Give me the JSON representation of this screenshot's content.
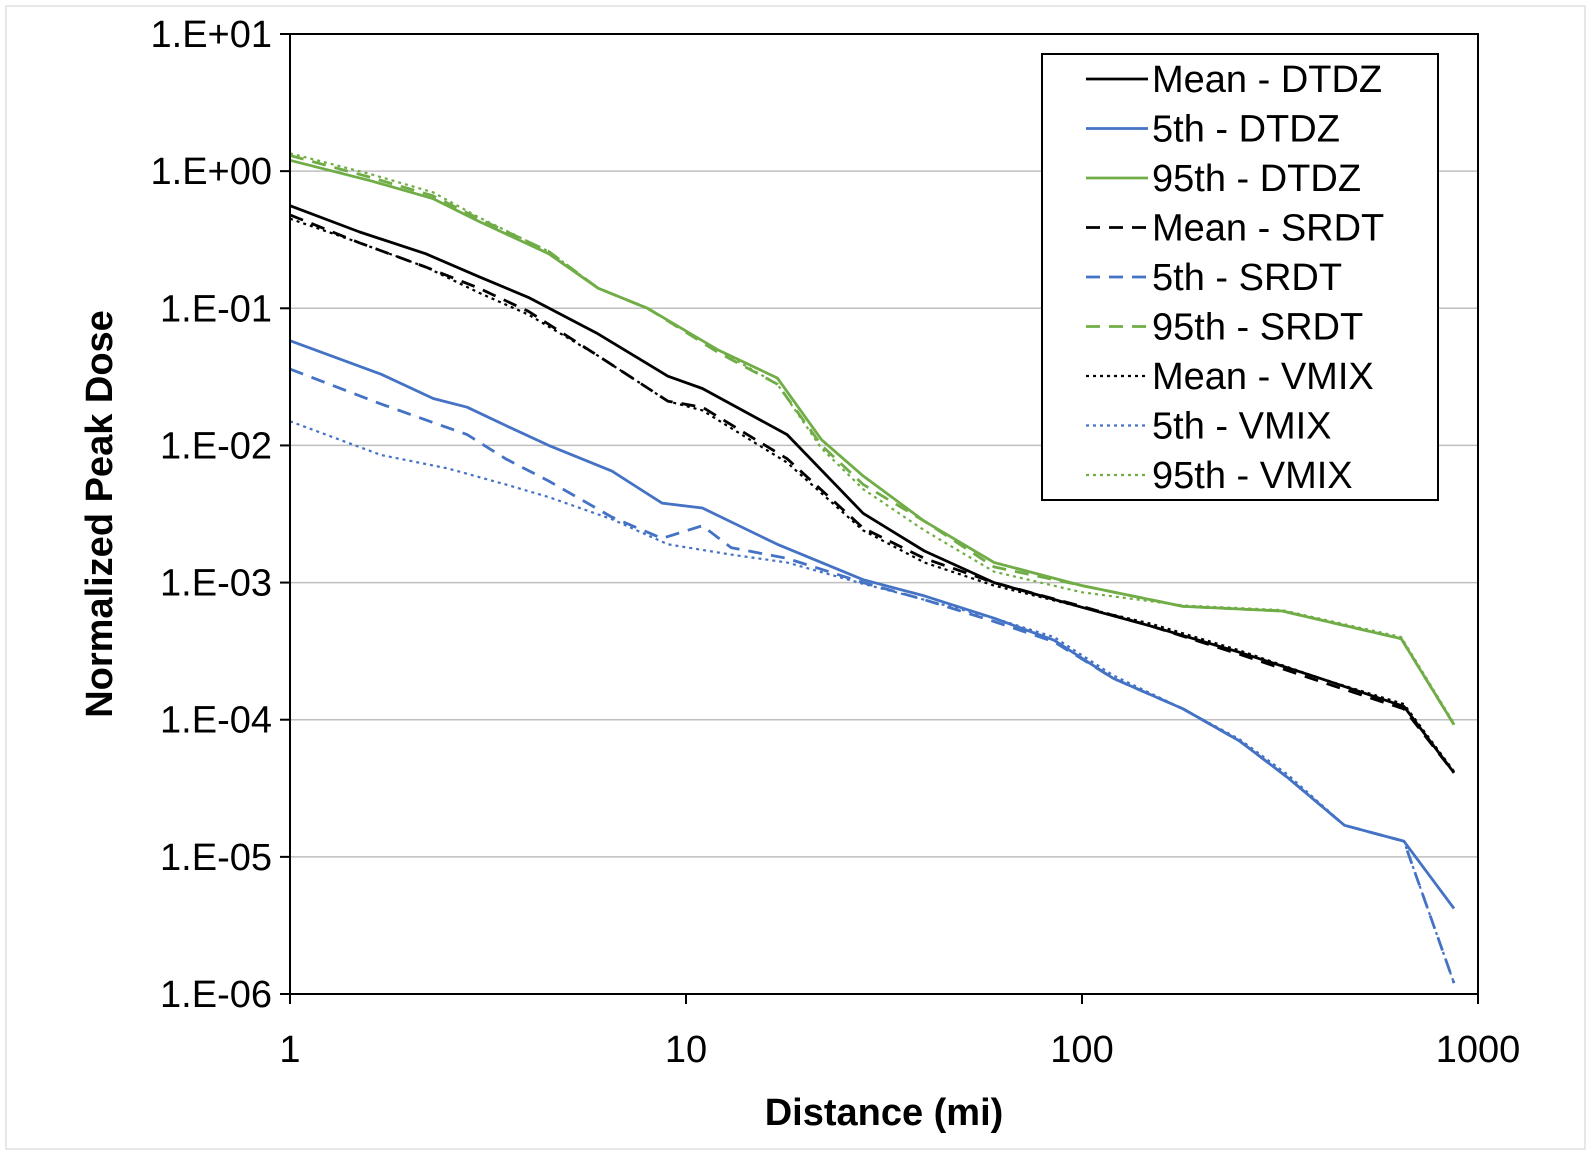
{
  "chart_data": {
    "type": "line",
    "title": "",
    "xlabel": "Distance (mi)",
    "ylabel": "Normalized Peak Dose",
    "xscale": "log",
    "yscale": "log",
    "xlim": [
      1,
      1000
    ],
    "ylim": [
      1e-06,
      10
    ],
    "x_ticks": [
      {
        "value": 1,
        "label": "1"
      },
      {
        "value": 10,
        "label": "10"
      },
      {
        "value": 100,
        "label": "100"
      },
      {
        "value": 1000,
        "label": "1000"
      }
    ],
    "y_ticks": [
      {
        "value": 10,
        "label": "1.E+01"
      },
      {
        "value": 1,
        "label": "1.E+00"
      },
      {
        "value": 0.1,
        "label": "1.E-01"
      },
      {
        "value": 0.01,
        "label": "1.E-02"
      },
      {
        "value": 0.001,
        "label": "1.E-03"
      },
      {
        "value": 0.0001,
        "label": "1.E-04"
      },
      {
        "value": 1e-05,
        "label": "1.E-05"
      },
      {
        "value": 1e-06,
        "label": "1.E-06"
      }
    ],
    "grid": "horizontal",
    "legend_position": "top-right",
    "colors": {
      "black": "#000000",
      "blue": "#4472c4",
      "green": "#70ad47",
      "grid": "#bfbfbf"
    },
    "series": [
      {
        "name": "Mean - DTDZ",
        "color": "#000000",
        "dash": "solid",
        "points": [
          [
            1,
            0.56
          ],
          [
            1.5,
            0.36
          ],
          [
            2.2,
            0.25
          ],
          [
            3,
            0.17
          ],
          [
            4,
            0.12
          ],
          [
            6,
            0.065
          ],
          [
            9,
            0.032
          ],
          [
            11,
            0.026
          ],
          [
            18,
            0.012
          ],
          [
            28,
            0.0032
          ],
          [
            40,
            0.0017
          ],
          [
            60,
            0.001
          ],
          [
            100,
            0.00066
          ],
          [
            150,
            0.00048
          ],
          [
            250,
            0.00031
          ],
          [
            400,
            0.0002
          ],
          [
            650,
            0.000125
          ],
          [
            870,
            4.1e-05
          ]
        ]
      },
      {
        "name": "5th - DTDZ",
        "color": "#4472c4",
        "dash": "solid",
        "points": [
          [
            1,
            0.058
          ],
          [
            1.7,
            0.033
          ],
          [
            2.3,
            0.022
          ],
          [
            2.8,
            0.019
          ],
          [
            3.5,
            0.014
          ],
          [
            4.5,
            0.01
          ],
          [
            6.5,
            0.0065
          ],
          [
            8.7,
            0.0038
          ],
          [
            11,
            0.0035
          ],
          [
            17,
            0.0019
          ],
          [
            28,
            0.00105
          ],
          [
            40,
            0.0008
          ],
          [
            60,
            0.00055
          ],
          [
            85,
            0.00038
          ],
          [
            120,
            0.0002
          ],
          [
            180,
            0.00012
          ],
          [
            250,
            7e-05
          ],
          [
            330,
            3.8e-05
          ],
          [
            460,
            1.7e-05
          ],
          [
            650,
            1.3e-05
          ],
          [
            870,
            4.2e-06
          ]
        ]
      },
      {
        "name": "95th - DTDZ",
        "color": "#70ad47",
        "dash": "solid",
        "points": [
          [
            1,
            1.2
          ],
          [
            1.6,
            0.85
          ],
          [
            2.3,
            0.63
          ],
          [
            3,
            0.43
          ],
          [
            4.5,
            0.25
          ],
          [
            6,
            0.14
          ],
          [
            8,
            0.1
          ],
          [
            12,
            0.05
          ],
          [
            17,
            0.031
          ],
          [
            22,
            0.011
          ],
          [
            28,
            0.006
          ],
          [
            40,
            0.0028
          ],
          [
            60,
            0.0014
          ],
          [
            100,
            0.00095
          ],
          [
            180,
            0.00067
          ],
          [
            320,
            0.00062
          ],
          [
            640,
            0.00039
          ],
          [
            870,
            9.2e-05
          ]
        ]
      },
      {
        "name": "Mean - SRDT",
        "color": "#000000",
        "dash": "dash",
        "points": [
          [
            1,
            0.48
          ],
          [
            1.5,
            0.3
          ],
          [
            2.2,
            0.2
          ],
          [
            3,
            0.14
          ],
          [
            4,
            0.095
          ],
          [
            6,
            0.045
          ],
          [
            9,
            0.021
          ],
          [
            11,
            0.019
          ],
          [
            18,
            0.008
          ],
          [
            28,
            0.0025
          ],
          [
            40,
            0.0015
          ],
          [
            60,
            0.001
          ],
          [
            100,
            0.00067
          ],
          [
            150,
            0.00048
          ],
          [
            250,
            0.0003
          ],
          [
            400,
            0.00019
          ],
          [
            650,
            0.00012
          ],
          [
            870,
            4.1e-05
          ]
        ]
      },
      {
        "name": "5th - SRDT",
        "color": "#4472c4",
        "dash": "dash",
        "points": [
          [
            1,
            0.036
          ],
          [
            1.7,
            0.02
          ],
          [
            2.8,
            0.012
          ],
          [
            3.5,
            0.008
          ],
          [
            4.5,
            0.0055
          ],
          [
            6.5,
            0.003
          ],
          [
            8.7,
            0.0021
          ],
          [
            11,
            0.0026
          ],
          [
            13,
            0.0018
          ],
          [
            18,
            0.0015
          ],
          [
            28,
            0.001
          ],
          [
            40,
            0.00075
          ],
          [
            60,
            0.00052
          ],
          [
            85,
            0.00037
          ],
          [
            120,
            0.0002
          ],
          [
            180,
            0.00012
          ],
          [
            250,
            7e-05
          ],
          [
            330,
            3.8e-05
          ],
          [
            460,
            1.7e-05
          ],
          [
            650,
            1.3e-05
          ],
          [
            870,
            1.2e-06
          ]
        ]
      },
      {
        "name": "95th - SRDT",
        "color": "#70ad47",
        "dash": "dash",
        "points": [
          [
            1,
            1.3
          ],
          [
            1.6,
            0.9
          ],
          [
            2.3,
            0.66
          ],
          [
            3,
            0.45
          ],
          [
            4.5,
            0.26
          ],
          [
            6,
            0.14
          ],
          [
            8,
            0.1
          ],
          [
            12,
            0.048
          ],
          [
            17,
            0.028
          ],
          [
            22,
            0.01
          ],
          [
            28,
            0.0052
          ],
          [
            40,
            0.0028
          ],
          [
            60,
            0.0013
          ],
          [
            100,
            0.00095
          ],
          [
            180,
            0.00067
          ],
          [
            320,
            0.00062
          ],
          [
            640,
            0.00039
          ],
          [
            870,
            9.2e-05
          ]
        ]
      },
      {
        "name": "Mean - VMIX",
        "color": "#000000",
        "dash": "dot",
        "points": [
          [
            1,
            0.45
          ],
          [
            1.5,
            0.3
          ],
          [
            2.2,
            0.2
          ],
          [
            3,
            0.13
          ],
          [
            4,
            0.09
          ],
          [
            6,
            0.045
          ],
          [
            9,
            0.021
          ],
          [
            11,
            0.018
          ],
          [
            18,
            0.0075
          ],
          [
            28,
            0.0024
          ],
          [
            40,
            0.0014
          ],
          [
            60,
            0.00095
          ],
          [
            100,
            0.00066
          ],
          [
            150,
            0.0005
          ],
          [
            250,
            0.00032
          ],
          [
            400,
            0.0002
          ],
          [
            650,
            0.00013
          ],
          [
            870,
            4.2e-05
          ]
        ]
      },
      {
        "name": "5th - VMIX",
        "color": "#4472c4",
        "dash": "dot",
        "points": [
          [
            1,
            0.015
          ],
          [
            1.7,
            0.0085
          ],
          [
            2.5,
            0.0068
          ],
          [
            3.5,
            0.0052
          ],
          [
            4.5,
            0.0042
          ],
          [
            6.5,
            0.0029
          ],
          [
            9,
            0.0019
          ],
          [
            13,
            0.0016
          ],
          [
            18,
            0.0014
          ],
          [
            28,
            0.00098
          ],
          [
            40,
            0.00075
          ],
          [
            60,
            0.00055
          ],
          [
            85,
            0.0004
          ],
          [
            120,
            0.00021
          ],
          [
            180,
            0.00012
          ],
          [
            250,
            7.2e-05
          ],
          [
            330,
            4e-05
          ],
          [
            460,
            1.7e-05
          ],
          [
            650,
            1.3e-05
          ],
          [
            870,
            1.2e-06
          ]
        ]
      },
      {
        "name": "95th - VMIX",
        "color": "#70ad47",
        "dash": "dot",
        "points": [
          [
            1,
            1.35
          ],
          [
            1.6,
            0.95
          ],
          [
            2.3,
            0.7
          ],
          [
            3,
            0.46
          ],
          [
            4.5,
            0.26
          ],
          [
            6,
            0.14
          ],
          [
            8,
            0.1
          ],
          [
            12,
            0.05
          ],
          [
            17,
            0.028
          ],
          [
            22,
            0.0095
          ],
          [
            28,
            0.0048
          ],
          [
            40,
            0.0024
          ],
          [
            60,
            0.0012
          ],
          [
            100,
            0.00085
          ],
          [
            180,
            0.00068
          ],
          [
            320,
            0.00063
          ],
          [
            640,
            0.0004
          ],
          [
            870,
            9.4e-05
          ]
        ]
      }
    ]
  }
}
